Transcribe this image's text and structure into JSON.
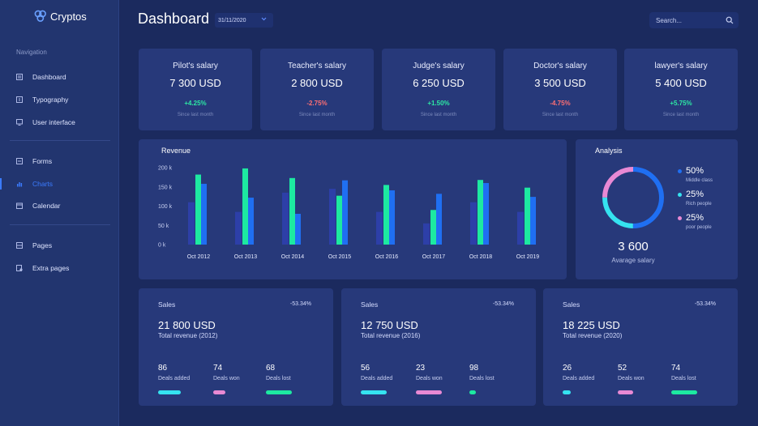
{
  "app": {
    "name": "Cryptos"
  },
  "sidebar": {
    "heading": "Navigation",
    "items": [
      {
        "label": "Dashboard",
        "icon": "dashboard-icon"
      },
      {
        "label": "Typography",
        "icon": "typography-icon"
      },
      {
        "label": "User interface",
        "icon": "monitor-icon"
      },
      {
        "label": "Forms",
        "icon": "forms-icon"
      },
      {
        "label": "Charts",
        "icon": "chart-icon",
        "active": true
      },
      {
        "label": "Calendar",
        "icon": "calendar-icon"
      },
      {
        "label": "Pages",
        "icon": "pages-icon"
      },
      {
        "label": "Extra pages",
        "icon": "extra-pages-icon"
      }
    ]
  },
  "header": {
    "title": "Dashboard",
    "date": "31/11/2020",
    "search_placeholder": "Search..."
  },
  "salaries": [
    {
      "title": "Pilot's salary",
      "value": "7 300 USD",
      "change": "+4.25%",
      "trend": "up",
      "note": "Since last month"
    },
    {
      "title": "Teacher's salary",
      "value": "2 800 USD",
      "change": "-2.75%",
      "trend": "down",
      "note": "Since last month"
    },
    {
      "title": "Judge's salary",
      "value": "6 250 USD",
      "change": "+1.50%",
      "trend": "up",
      "note": "Since last month"
    },
    {
      "title": "Doctor's salary",
      "value": "3 500 USD",
      "change": "-4.75%",
      "trend": "down",
      "note": "Since last month"
    },
    {
      "title": "lawyer's salary",
      "value": "5 400 USD",
      "change": "+5.75%",
      "trend": "up",
      "note": "Since last month"
    }
  ],
  "revenue": {
    "title": "Revenue",
    "chart_data": {
      "type": "bar",
      "categories": [
        "Oct 2012",
        "Oct 2013",
        "Oct 2014",
        "Oct 2015",
        "Oct 2016",
        "Oct 2017",
        "Oct 2018",
        "Oct 2019"
      ],
      "y_ticks": [
        "200 k",
        "150 k",
        "100 k",
        "50 k",
        "0 k"
      ],
      "ylim": [
        0,
        200
      ],
      "series": [
        {
          "values": [
            110,
            85,
            135,
            145,
            85,
            55,
            110,
            85
          ],
          "color": "#2d3fa8"
        },
        {
          "values": [
            182,
            198,
            173,
            127,
            155,
            90,
            168,
            148
          ],
          "color": "#1de9a1"
        },
        {
          "values": [
            158,
            122,
            80,
            167,
            141,
            132,
            160,
            124
          ],
          "color": "#1f6ff2"
        }
      ]
    }
  },
  "analysis": {
    "title": "Analysis",
    "total": "3 600",
    "total_label": "Avarage salary",
    "chart_data": {
      "type": "pie",
      "slices": [
        {
          "label": "Middle class",
          "percent": "50%",
          "value": 50,
          "color": "#1f6ff2"
        },
        {
          "label": "Rich people",
          "percent": "25%",
          "value": 25,
          "color": "#35e3f0"
        },
        {
          "label": "poor people",
          "percent": "25%",
          "value": 25,
          "color": "#e889d4"
        }
      ]
    }
  },
  "sales": [
    {
      "title": "Sales",
      "change": "-53.34%",
      "value": "21 800 USD",
      "subtitle": "Total revenue (2012)",
      "stats": [
        {
          "value": "86",
          "label": "Deals added",
          "color": "#35e3f0",
          "level": 0.86
        },
        {
          "value": "74",
          "label": "Deals won",
          "color": "#e889d4",
          "level": 0.48
        },
        {
          "value": "68",
          "label": "Deals lost",
          "color": "#1de9a1",
          "level": 1.0
        }
      ]
    },
    {
      "title": "Sales",
      "change": "-53.34%",
      "value": "12 750 USD",
      "subtitle": "Total revenue (2016)",
      "stats": [
        {
          "value": "56",
          "label": "Deals added",
          "color": "#35e3f0",
          "level": 1.0
        },
        {
          "value": "23",
          "label": "Deals won",
          "color": "#e889d4",
          "level": 1.0
        },
        {
          "value": "98",
          "label": "Deals lost",
          "color": "#1de9a1",
          "level": 0.25
        }
      ]
    },
    {
      "title": "Sales",
      "change": "-53.34%",
      "value": "18 225 USD",
      "subtitle": "Total revenue (2020)",
      "stats": [
        {
          "value": "26",
          "label": "Deals added",
          "color": "#35e3f0",
          "level": 0.3
        },
        {
          "value": "52",
          "label": "Deals won",
          "color": "#e889d4",
          "level": 0.6
        },
        {
          "value": "74",
          "label": "Deals lost",
          "color": "#1de9a1",
          "level": 1.0
        }
      ]
    }
  ]
}
